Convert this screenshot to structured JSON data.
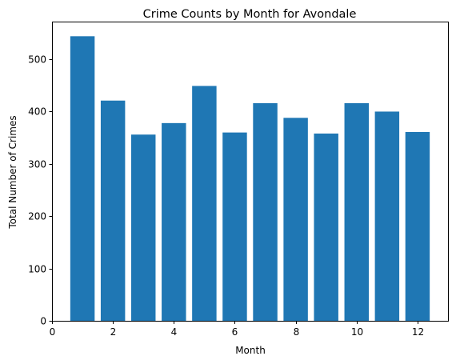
{
  "chart_data": {
    "type": "bar",
    "title": "Crime Counts by Month for Avondale",
    "xlabel": "Month",
    "ylabel": "Total Number of Crimes",
    "x": [
      1,
      2,
      3,
      4,
      5,
      6,
      7,
      8,
      9,
      10,
      11,
      12
    ],
    "values": [
      544,
      421,
      356,
      378,
      449,
      360,
      416,
      388,
      358,
      416,
      400,
      361
    ],
    "xlim": [
      0,
      13
    ],
    "ylim": [
      0,
      572
    ],
    "xticks": [
      0,
      2,
      4,
      6,
      8,
      10,
      12
    ],
    "yticks": [
      0,
      100,
      200,
      300,
      400,
      500
    ],
    "bar_color": "#1f77b4",
    "grid": false,
    "legend": "none"
  }
}
